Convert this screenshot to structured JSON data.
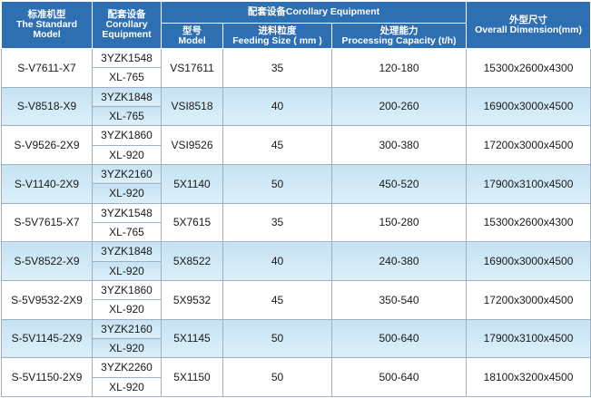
{
  "header": {
    "standard_model": [
      "标准机型",
      "The Standard",
      "Model"
    ],
    "corollary_equipment": [
      "配套设备",
      "Corollary",
      "Equipment"
    ],
    "corollary_group": "配套设备Corollary Equipment",
    "type": [
      "型号",
      "Model"
    ],
    "feeding_size": [
      "进料粒度",
      "Feeding Size ( mm )"
    ],
    "capacity": [
      "处理能力",
      "Processing Capacity (t/h)"
    ],
    "dimension": [
      "外型尺寸",
      "Overall Dimension(mm)"
    ]
  },
  "rows": [
    {
      "model": "S-V7611-X7",
      "equip_a": "3YZK1548",
      "equip_b": "XL-765",
      "type": "VS17611",
      "feed": "35",
      "capacity": "120-180",
      "dimension": "15300x2600x4300"
    },
    {
      "model": "S-V8518-X9",
      "equip_a": "3YZK1848",
      "equip_b": "XL-765",
      "type": "VSI8518",
      "feed": "40",
      "capacity": "200-260",
      "dimension": "16900x3000x4500"
    },
    {
      "model": "S-V9526-2X9",
      "equip_a": "3YZK1860",
      "equip_b": "XL-920",
      "type": "VSI9526",
      "feed": "45",
      "capacity": "300-380",
      "dimension": "17200x3000x4500"
    },
    {
      "model": "S-V1140-2X9",
      "equip_a": "3YZK2160",
      "equip_b": "XL-920",
      "type": "5X1140",
      "feed": "50",
      "capacity": "450-520",
      "dimension": "17900x3100x4500"
    },
    {
      "model": "S-5V7615-X7",
      "equip_a": "3YZK1548",
      "equip_b": "XL-765",
      "type": "5X7615",
      "feed": "35",
      "capacity": "150-280",
      "dimension": "15300x2600x4300"
    },
    {
      "model": "S-5V8522-X9",
      "equip_a": "3YZK1848",
      "equip_b": "XL-920",
      "type": "5X8522",
      "feed": "40",
      "capacity": "240-380",
      "dimension": "16900x3000x4500"
    },
    {
      "model": "S-5V9532-2X9",
      "equip_a": "3YZK1860",
      "equip_b": "XL-920",
      "type": "5X9532",
      "feed": "45",
      "capacity": "350-540",
      "dimension": "17200x3000x4500"
    },
    {
      "model": "S-5V1145-2X9",
      "equip_a": "3YZK2160",
      "equip_b": "XL-920",
      "type": "5X1145",
      "feed": "50",
      "capacity": "500-640",
      "dimension": "17900x3100x4500"
    },
    {
      "model": "S-5V1150-2X9",
      "equip_a": "3YZK2260",
      "equip_b": "XL-920",
      "type": "5X1150",
      "feed": "50",
      "capacity": "500-640",
      "dimension": "18100x3200x4500"
    }
  ],
  "colors": {
    "header_bg": "#2e6fb1",
    "row_blue": "#cfe6f4",
    "row_white": "#ffffff"
  }
}
